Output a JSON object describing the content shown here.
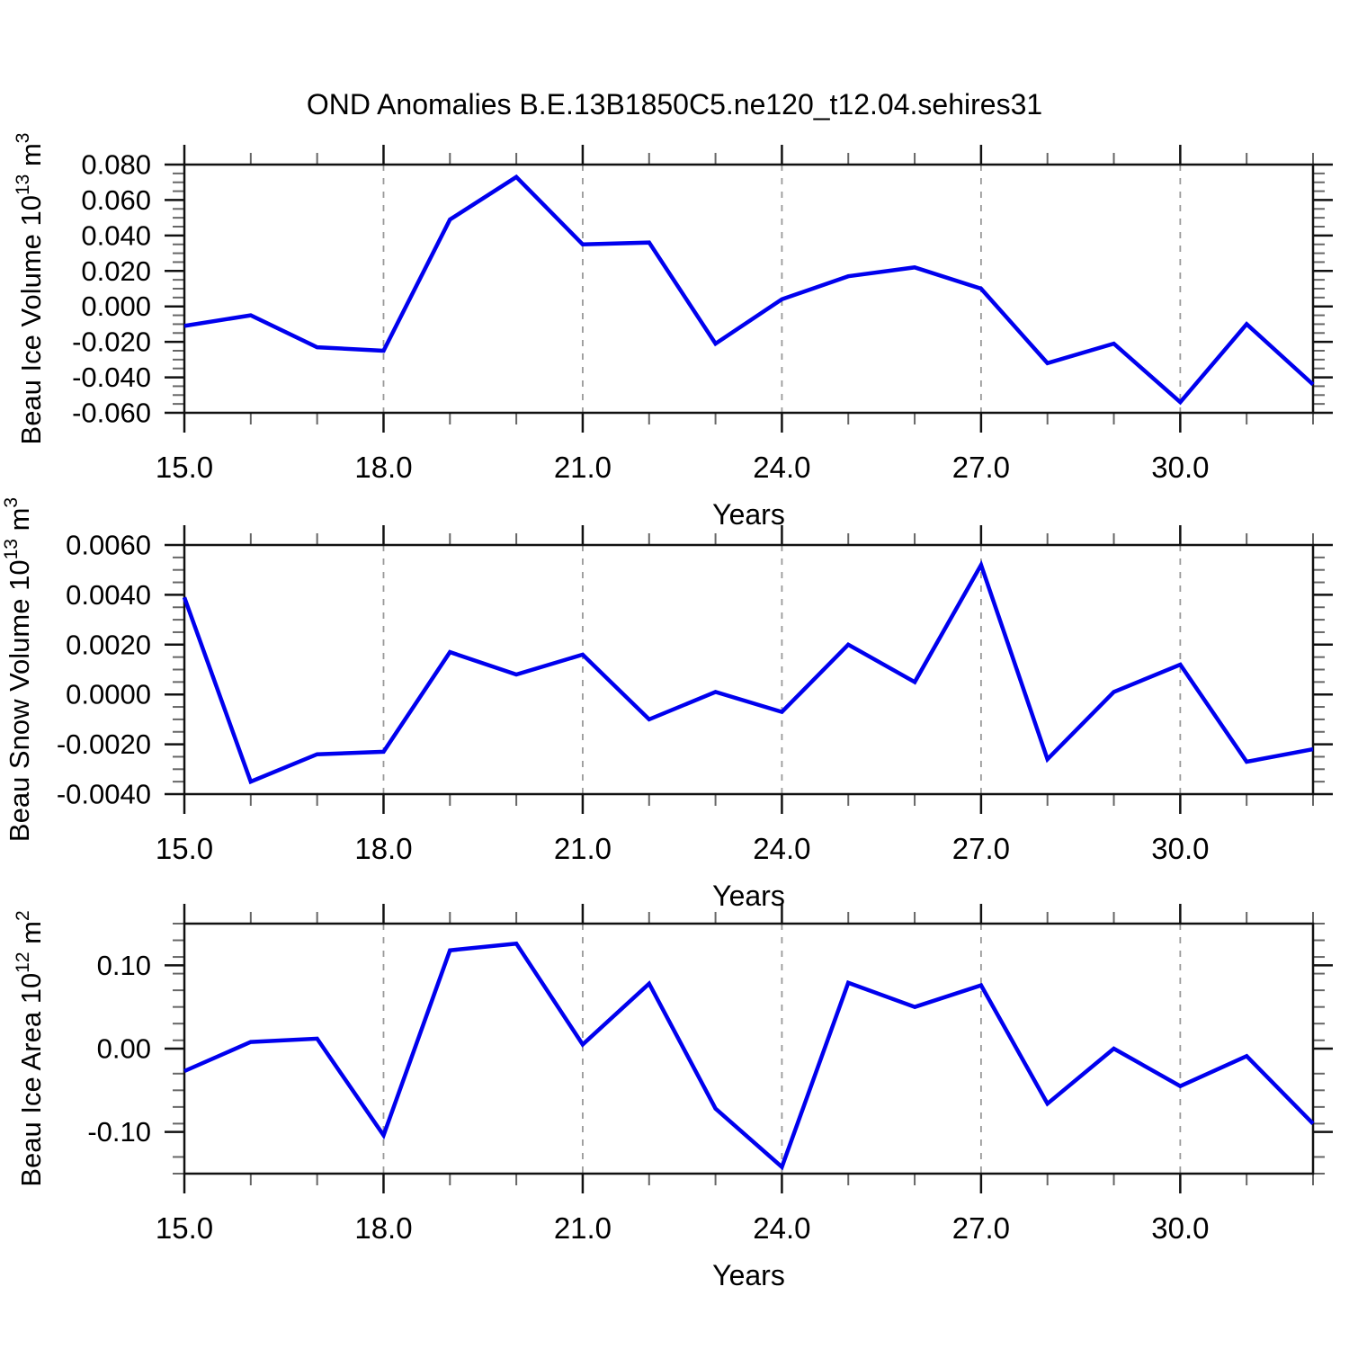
{
  "title": "OND Anomalies B.E.13B1850C5.ne120_t12.04.sehires31",
  "chart_data": {
    "type": "line",
    "title": "OND Anomalies B.E.13B1850C5.ne120_t12.04.sehires31",
    "xlabel": "Years",
    "xlim": [
      15,
      32
    ],
    "x": [
      15,
      16,
      17,
      18,
      19,
      20,
      21,
      22,
      23,
      24,
      25,
      26,
      27,
      28,
      29,
      30,
      31,
      32
    ],
    "x_tick_labels": [
      "15.0",
      "18.0",
      "21.0",
      "24.0",
      "27.0",
      "30.0"
    ],
    "x_tick_values": [
      15,
      18,
      21,
      24,
      27,
      30
    ],
    "x_gridlines": [
      18,
      21,
      24,
      27,
      30
    ],
    "grid": "vertical-dashed",
    "legend": "none",
    "line_color": "#0000ee",
    "panels": [
      {
        "name": "beau-ice-volume",
        "ylabel": "Beau Ice Volume 10^13 m^3",
        "ylabel_parts": [
          {
            "t": "Beau Ice Volume 10"
          },
          {
            "t": "13",
            "sup": true
          },
          {
            "t": " m"
          },
          {
            "t": "3",
            "sup": true
          }
        ],
        "ylim": [
          -0.06,
          0.08
        ],
        "y_tick_labels": [
          "0.080",
          "0.060",
          "0.040",
          "0.020",
          "0.000",
          "-0.020",
          "-0.040",
          "-0.060"
        ],
        "y_tick_values": [
          0.08,
          0.06,
          0.04,
          0.02,
          0.0,
          -0.02,
          -0.04,
          -0.06
        ],
        "y_minor_step": 0.005,
        "values": [
          -0.011,
          -0.005,
          -0.023,
          -0.025,
          0.049,
          0.073,
          0.035,
          0.036,
          -0.021,
          0.004,
          0.017,
          0.022,
          0.01,
          -0.032,
          -0.021,
          -0.054,
          -0.01,
          -0.044
        ]
      },
      {
        "name": "beau-snow-volume",
        "ylabel": "Beau Snow Volume 10^13 m^3",
        "ylabel_parts": [
          {
            "t": "Beau Snow Volume 10"
          },
          {
            "t": "13",
            "sup": true
          },
          {
            "t": " m"
          },
          {
            "t": "3",
            "sup": true
          }
        ],
        "ylim": [
          -0.004,
          0.006
        ],
        "y_tick_labels": [
          "0.0060",
          "0.0040",
          "0.0020",
          "0.0000",
          "-0.0020",
          "-0.0040"
        ],
        "y_tick_values": [
          0.006,
          0.004,
          0.002,
          0.0,
          -0.002,
          -0.004
        ],
        "y_minor_step": 0.0005,
        "values": [
          0.0039,
          -0.0035,
          -0.0024,
          -0.0023,
          0.0017,
          0.0008,
          0.0016,
          -0.001,
          0.0001,
          -0.0007,
          0.002,
          0.0005,
          0.0052,
          -0.0026,
          0.0001,
          0.0012,
          -0.0027,
          -0.0022
        ]
      },
      {
        "name": "beau-ice-area",
        "ylabel": "Beau Ice Area 10^12 m^2",
        "ylabel_parts": [
          {
            "t": "Beau Ice Area 10"
          },
          {
            "t": "12",
            "sup": true
          },
          {
            "t": " m"
          },
          {
            "t": "2",
            "sup": true
          }
        ],
        "ylim": [
          -0.15,
          0.15
        ],
        "y_tick_labels": [
          "0.10",
          "0.00",
          "-0.10"
        ],
        "y_tick_values": [
          0.1,
          0.0,
          -0.1
        ],
        "y_minor_step": 0.02,
        "values": [
          -0.027,
          0.008,
          0.012,
          -0.104,
          0.118,
          0.126,
          0.005,
          0.078,
          -0.072,
          -0.142,
          0.079,
          0.05,
          0.076,
          -0.066,
          0.0,
          -0.045,
          -0.009,
          -0.09
        ]
      }
    ]
  }
}
